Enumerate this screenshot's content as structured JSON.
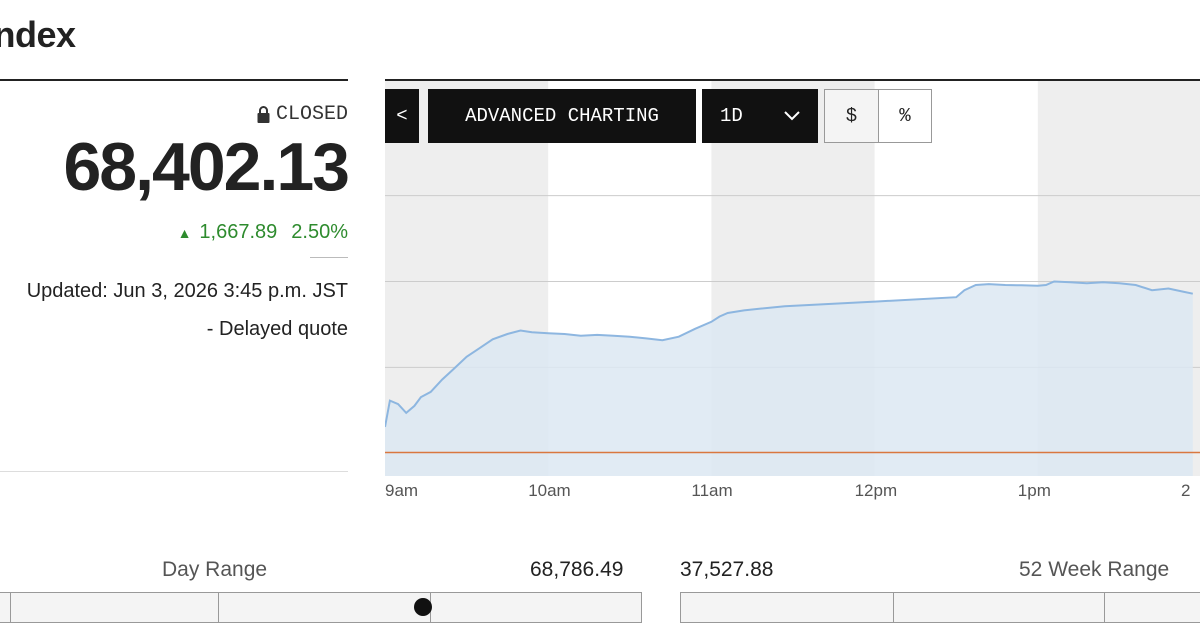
{
  "header": {
    "title": "Index"
  },
  "quote": {
    "status": "CLOSED",
    "price": "68,402.13",
    "change": "1,667.89",
    "change_pct": "2.50%",
    "updated": "Updated: Jun 3, 2026 3:45 p.m. JST",
    "delayed": "- Delayed quote"
  },
  "toolbar": {
    "back_label": "<",
    "advanced_label": "ADVANCED CHARTING",
    "range_label": "1D",
    "dollar_label": "$",
    "percent_label": "%"
  },
  "colors": {
    "line": "#8db6e0",
    "fill": "#dce8f2",
    "band": "#eeeeee",
    "prev_close": "#d9773f",
    "up": "#2e8b2e"
  },
  "ranges": {
    "day": {
      "label": "Day Range",
      "high": "68,786.49",
      "current_fraction": 0.66
    },
    "week52": {
      "label": "52 Week Range",
      "low": "37,527.88"
    }
  },
  "chart_data": {
    "type": "area",
    "title": "",
    "xlabel": "",
    "ylabel": "",
    "x_ticks": [
      "9am",
      "10am",
      "11am",
      "12pm",
      "1pm",
      "2"
    ],
    "x_tick_hours": [
      9,
      10,
      11,
      12,
      13,
      14
    ],
    "x_range": [
      9,
      13.95
    ],
    "ylim": [
      66600,
      68500
    ],
    "gridlines_y": [
      68200,
      67710,
      67220
    ],
    "previous_close": 66734.24,
    "grid": true,
    "series": [
      {
        "x": [
          9.0,
          9.03,
          9.08,
          9.13,
          9.18,
          9.22,
          9.28,
          9.35,
          9.42,
          9.5,
          9.58,
          9.66,
          9.75,
          9.83,
          9.9,
          10.0,
          10.1,
          10.2,
          10.3,
          10.4,
          10.5,
          10.6,
          10.7,
          10.8,
          10.9,
          11.0,
          11.05,
          11.1,
          11.2,
          11.3,
          11.45,
          12.0,
          12.5,
          12.55,
          12.62,
          12.7,
          12.8,
          12.9,
          13.0,
          13.05,
          13.1,
          13.2,
          13.3,
          13.4,
          13.5,
          13.6,
          13.7,
          13.8,
          13.9,
          13.95
        ],
        "y": [
          66880,
          67030,
          67010,
          66960,
          67000,
          67050,
          67080,
          67150,
          67210,
          67280,
          67330,
          67380,
          67410,
          67430,
          67420,
          67415,
          67410,
          67400,
          67405,
          67400,
          67395,
          67385,
          67375,
          67395,
          67440,
          67480,
          67510,
          67530,
          67545,
          67555,
          67568,
          67595,
          67620,
          67660,
          67690,
          67695,
          67690,
          67688,
          67685,
          67690,
          67710,
          67705,
          67700,
          67705,
          67700,
          67690,
          67660,
          67670,
          67650,
          67640
        ]
      }
    ]
  }
}
